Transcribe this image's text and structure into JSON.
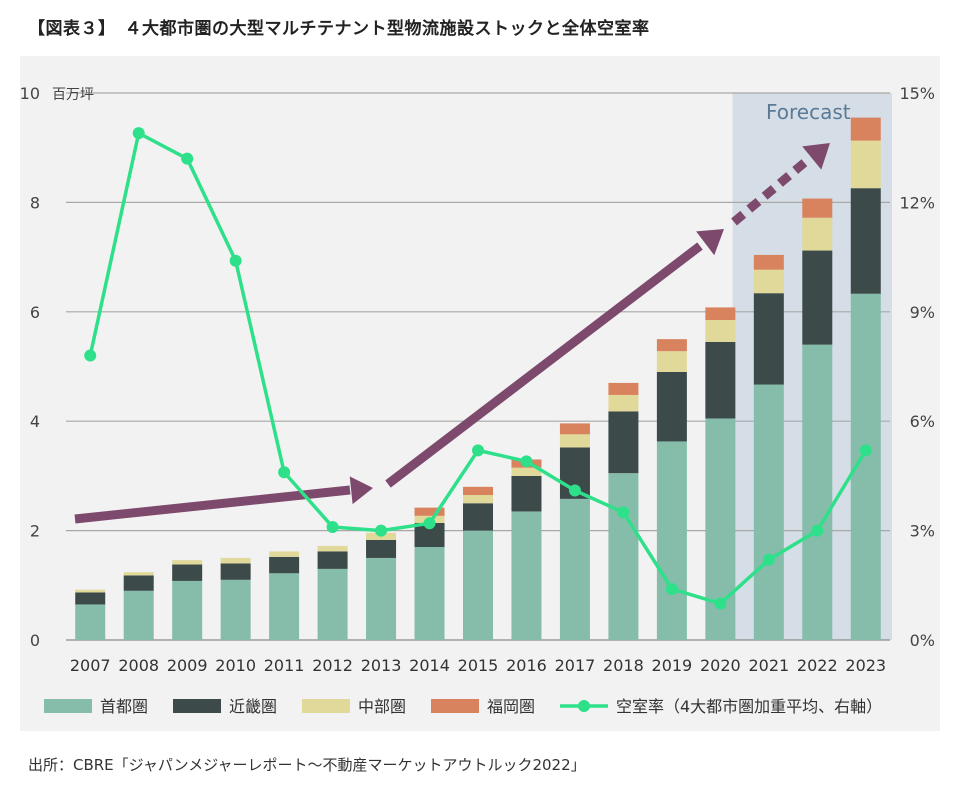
{
  "title": "【図表３】　４大都市圏の大型マルチテナント型物流施設ストックと全体空室率",
  "source": "出所：CBRE「ジャパンメジャーレポート～不動産マーケットアウトルック2022」",
  "chart_data": {
    "type": "bar",
    "stacked": true,
    "categories": [
      "2007",
      "2008",
      "2009",
      "2010",
      "2011",
      "2012",
      "2013",
      "2014",
      "2015",
      "2016",
      "2017",
      "2018",
      "2019",
      "2020",
      "2021",
      "2022",
      "2023"
    ],
    "y_unit_label": "百万坪",
    "ylim": [
      0,
      10
    ],
    "y_ticks": [
      "0",
      "2",
      "4",
      "6",
      "8",
      "10"
    ],
    "y2lim": [
      0,
      15
    ],
    "y2_ticks": [
      "0%",
      "3%",
      "6%",
      "9%",
      "12%",
      "15%"
    ],
    "forecast_label": "Forecast",
    "forecast_categories": [
      "2021",
      "2022",
      "2023"
    ],
    "legend_position": "bottom",
    "grid": true,
    "series": [
      {
        "name": "首都圏",
        "color": "#86bcaa",
        "values": [
          0.65,
          0.9,
          1.08,
          1.1,
          1.22,
          1.3,
          1.5,
          1.7,
          2.0,
          2.35,
          2.58,
          3.05,
          3.63,
          4.05,
          4.67,
          5.4,
          6.33
        ]
      },
      {
        "name": "近畿圏",
        "color": "#3d4a4a",
        "values": [
          0.22,
          0.28,
          0.3,
          0.3,
          0.3,
          0.32,
          0.33,
          0.44,
          0.5,
          0.65,
          0.94,
          1.13,
          1.27,
          1.4,
          1.67,
          1.72,
          1.93
        ]
      },
      {
        "name": "中部圏",
        "color": "#e0d99a",
        "values": [
          0.05,
          0.06,
          0.08,
          0.1,
          0.1,
          0.1,
          0.13,
          0.13,
          0.15,
          0.15,
          0.24,
          0.3,
          0.38,
          0.4,
          0.43,
          0.6,
          0.87
        ]
      },
      {
        "name": "福岡圏",
        "color": "#d9825e",
        "values": [
          0.0,
          0.0,
          0.0,
          0.0,
          0.0,
          0.0,
          0.0,
          0.15,
          0.15,
          0.15,
          0.2,
          0.22,
          0.22,
          0.23,
          0.27,
          0.35,
          0.42
        ]
      }
    ],
    "line_series": {
      "name": "空室率（4大都市圏加重平均、右軸）",
      "color": "#2ee08a",
      "axis": "right",
      "values": [
        7.8,
        13.9,
        13.2,
        10.4,
        4.6,
        3.1,
        3.0,
        3.2,
        5.2,
        4.9,
        4.1,
        3.5,
        1.4,
        1.0,
        2.2,
        3.0,
        5.2
      ]
    }
  }
}
